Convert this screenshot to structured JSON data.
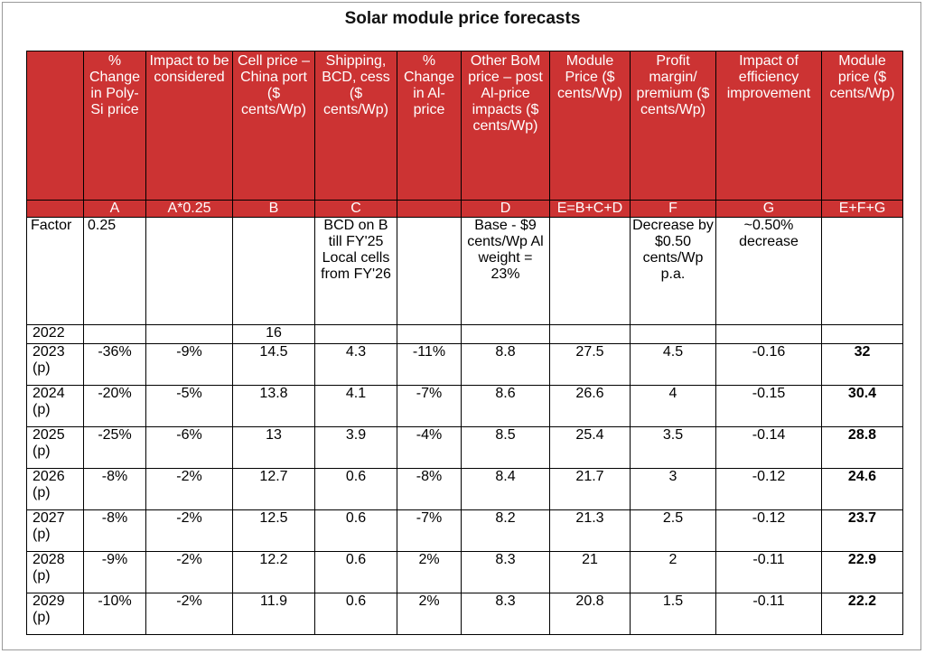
{
  "title": "Solar module price forecasts",
  "columns": [
    {
      "key": "year",
      "header": "",
      "formula": ""
    },
    {
      "key": "polysi",
      "header": "% Change in Poly-Si price",
      "formula": "A"
    },
    {
      "key": "impact",
      "header": "Impact to be considered",
      "formula": "A*0.25"
    },
    {
      "key": "cell",
      "header": "Cell price – China port ($ cents/Wp)",
      "formula": "B"
    },
    {
      "key": "ship",
      "header": "Shipping, BCD, cess ($ cents/Wp)",
      "formula": "C"
    },
    {
      "key": "al",
      "header": "% Change in Al-price",
      "formula": ""
    },
    {
      "key": "bom",
      "header": "Other BoM price – post Al-price impacts ($ cents/Wp)",
      "formula": "D"
    },
    {
      "key": "module",
      "header": "Module Price ($ cents/Wp)",
      "formula": "E=B+C+D"
    },
    {
      "key": "margin",
      "header": "Profit margin/ premium ($ cents/Wp)",
      "formula": "F"
    },
    {
      "key": "eff",
      "header": "Impact of efficiency improvement",
      "formula": "G"
    },
    {
      "key": "final",
      "header": "Module price ($ cents/Wp)",
      "formula": "E+F+G"
    }
  ],
  "factor_row": {
    "year": "Factor",
    "polysi": "0.25",
    "impact": "",
    "cell": "",
    "ship": "BCD on B till FY'25 Local cells from FY'26",
    "al": "",
    "bom": "Base - $9 cents/Wp Al weight = 23%",
    "module": "",
    "margin": "Decrease by $0.50 cents/Wp p.a.",
    "eff": "~0.50% decrease",
    "final": ""
  },
  "base_row": {
    "year": "2022",
    "cell": "16"
  },
  "rows": [
    {
      "year": "2023 (p)",
      "polysi": "-36%",
      "impact": "-9%",
      "cell": "14.5",
      "ship": "4.3",
      "al": "-11%",
      "bom": "8.8",
      "module": "27.5",
      "margin": "4.5",
      "eff": "-0.16",
      "final": "32"
    },
    {
      "year": "2024 (p)",
      "polysi": "-20%",
      "impact": "-5%",
      "cell": "13.8",
      "ship": "4.1",
      "al": "-7%",
      "bom": "8.6",
      "module": "26.6",
      "margin": "4",
      "eff": "-0.15",
      "final": "30.4"
    },
    {
      "year": "2025 (p)",
      "polysi": "-25%",
      "impact": "-6%",
      "cell": "13",
      "ship": "3.9",
      "al": "-4%",
      "bom": "8.5",
      "module": "25.4",
      "margin": "3.5",
      "eff": "-0.14",
      "final": "28.8"
    },
    {
      "year": "2026 (p)",
      "polysi": "-8%",
      "impact": "-2%",
      "cell": "12.7",
      "ship": "0.6",
      "al": "-8%",
      "bom": "8.4",
      "module": "21.7",
      "margin": "3",
      "eff": "-0.12",
      "final": "24.6"
    },
    {
      "year": "2027 (p)",
      "polysi": "-8%",
      "impact": "-2%",
      "cell": "12.5",
      "ship": "0.6",
      "al": "-7%",
      "bom": "8.2",
      "module": "21.3",
      "margin": "2.5",
      "eff": "-0.12",
      "final": "23.7"
    },
    {
      "year": "2028 (p)",
      "polysi": "-9%",
      "impact": "-2%",
      "cell": "12.2",
      "ship": "0.6",
      "al": "2%",
      "bom": "8.3",
      "module": "21",
      "margin": "2",
      "eff": "-0.11",
      "final": "22.9"
    },
    {
      "year": "2029 (p)",
      "polysi": "-10%",
      "impact": "-2%",
      "cell": "11.9",
      "ship": "0.6",
      "al": "2%",
      "bom": "8.3",
      "module": "20.8",
      "margin": "1.5",
      "eff": "-0.11",
      "final": "22.2"
    }
  ]
}
